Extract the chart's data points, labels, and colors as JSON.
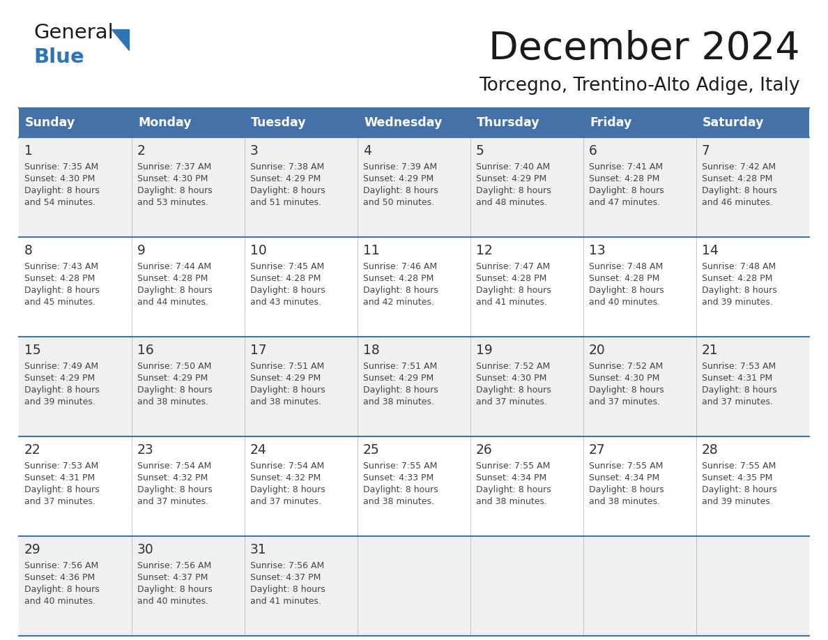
{
  "title": "December 2024",
  "subtitle": "Torcegno, Trentino-Alto Adige, Italy",
  "days_of_week": [
    "Sunday",
    "Monday",
    "Tuesday",
    "Wednesday",
    "Thursday",
    "Friday",
    "Saturday"
  ],
  "header_bg_color": "#4472A8",
  "header_text_color": "#FFFFFF",
  "cell_bg_color_odd": "#F0F0F0",
  "cell_bg_color_even": "#FFFFFF",
  "border_color": "#4472A8",
  "title_color": "#1a1a1a",
  "subtitle_color": "#1a1a1a",
  "general_color": "#1a1a1a",
  "blue_color": "#2E75B6",
  "day_number_color": "#333333",
  "cell_text_color": "#444444",
  "calendar": [
    [
      {
        "day": 1,
        "sunrise": "7:35 AM",
        "sunset": "4:30 PM",
        "daylight_line2": "and 54 minutes."
      },
      {
        "day": 2,
        "sunrise": "7:37 AM",
        "sunset": "4:30 PM",
        "daylight_line2": "and 53 minutes."
      },
      {
        "day": 3,
        "sunrise": "7:38 AM",
        "sunset": "4:29 PM",
        "daylight_line2": "and 51 minutes."
      },
      {
        "day": 4,
        "sunrise": "7:39 AM",
        "sunset": "4:29 PM",
        "daylight_line2": "and 50 minutes."
      },
      {
        "day": 5,
        "sunrise": "7:40 AM",
        "sunset": "4:29 PM",
        "daylight_line2": "and 48 minutes."
      },
      {
        "day": 6,
        "sunrise": "7:41 AM",
        "sunset": "4:28 PM",
        "daylight_line2": "and 47 minutes."
      },
      {
        "day": 7,
        "sunrise": "7:42 AM",
        "sunset": "4:28 PM",
        "daylight_line2": "and 46 minutes."
      }
    ],
    [
      {
        "day": 8,
        "sunrise": "7:43 AM",
        "sunset": "4:28 PM",
        "daylight_line2": "and 45 minutes."
      },
      {
        "day": 9,
        "sunrise": "7:44 AM",
        "sunset": "4:28 PM",
        "daylight_line2": "and 44 minutes."
      },
      {
        "day": 10,
        "sunrise": "7:45 AM",
        "sunset": "4:28 PM",
        "daylight_line2": "and 43 minutes."
      },
      {
        "day": 11,
        "sunrise": "7:46 AM",
        "sunset": "4:28 PM",
        "daylight_line2": "and 42 minutes."
      },
      {
        "day": 12,
        "sunrise": "7:47 AM",
        "sunset": "4:28 PM",
        "daylight_line2": "and 41 minutes."
      },
      {
        "day": 13,
        "sunrise": "7:48 AM",
        "sunset": "4:28 PM",
        "daylight_line2": "and 40 minutes."
      },
      {
        "day": 14,
        "sunrise": "7:48 AM",
        "sunset": "4:28 PM",
        "daylight_line2": "and 39 minutes."
      }
    ],
    [
      {
        "day": 15,
        "sunrise": "7:49 AM",
        "sunset": "4:29 PM",
        "daylight_line2": "and 39 minutes."
      },
      {
        "day": 16,
        "sunrise": "7:50 AM",
        "sunset": "4:29 PM",
        "daylight_line2": "and 38 minutes."
      },
      {
        "day": 17,
        "sunrise": "7:51 AM",
        "sunset": "4:29 PM",
        "daylight_line2": "and 38 minutes."
      },
      {
        "day": 18,
        "sunrise": "7:51 AM",
        "sunset": "4:29 PM",
        "daylight_line2": "and 38 minutes."
      },
      {
        "day": 19,
        "sunrise": "7:52 AM",
        "sunset": "4:30 PM",
        "daylight_line2": "and 37 minutes."
      },
      {
        "day": 20,
        "sunrise": "7:52 AM",
        "sunset": "4:30 PM",
        "daylight_line2": "and 37 minutes."
      },
      {
        "day": 21,
        "sunrise": "7:53 AM",
        "sunset": "4:31 PM",
        "daylight_line2": "and 37 minutes."
      }
    ],
    [
      {
        "day": 22,
        "sunrise": "7:53 AM",
        "sunset": "4:31 PM",
        "daylight_line2": "and 37 minutes."
      },
      {
        "day": 23,
        "sunrise": "7:54 AM",
        "sunset": "4:32 PM",
        "daylight_line2": "and 37 minutes."
      },
      {
        "day": 24,
        "sunrise": "7:54 AM",
        "sunset": "4:32 PM",
        "daylight_line2": "and 37 minutes."
      },
      {
        "day": 25,
        "sunrise": "7:55 AM",
        "sunset": "4:33 PM",
        "daylight_line2": "and 38 minutes."
      },
      {
        "day": 26,
        "sunrise": "7:55 AM",
        "sunset": "4:34 PM",
        "daylight_line2": "and 38 minutes."
      },
      {
        "day": 27,
        "sunrise": "7:55 AM",
        "sunset": "4:34 PM",
        "daylight_line2": "and 38 minutes."
      },
      {
        "day": 28,
        "sunrise": "7:55 AM",
        "sunset": "4:35 PM",
        "daylight_line2": "and 39 minutes."
      }
    ],
    [
      {
        "day": 29,
        "sunrise": "7:56 AM",
        "sunset": "4:36 PM",
        "daylight_line2": "and 40 minutes."
      },
      {
        "day": 30,
        "sunrise": "7:56 AM",
        "sunset": "4:37 PM",
        "daylight_line2": "and 40 minutes."
      },
      {
        "day": 31,
        "sunrise": "7:56 AM",
        "sunset": "4:37 PM",
        "daylight_line2": "and 41 minutes."
      },
      null,
      null,
      null,
      null
    ]
  ]
}
